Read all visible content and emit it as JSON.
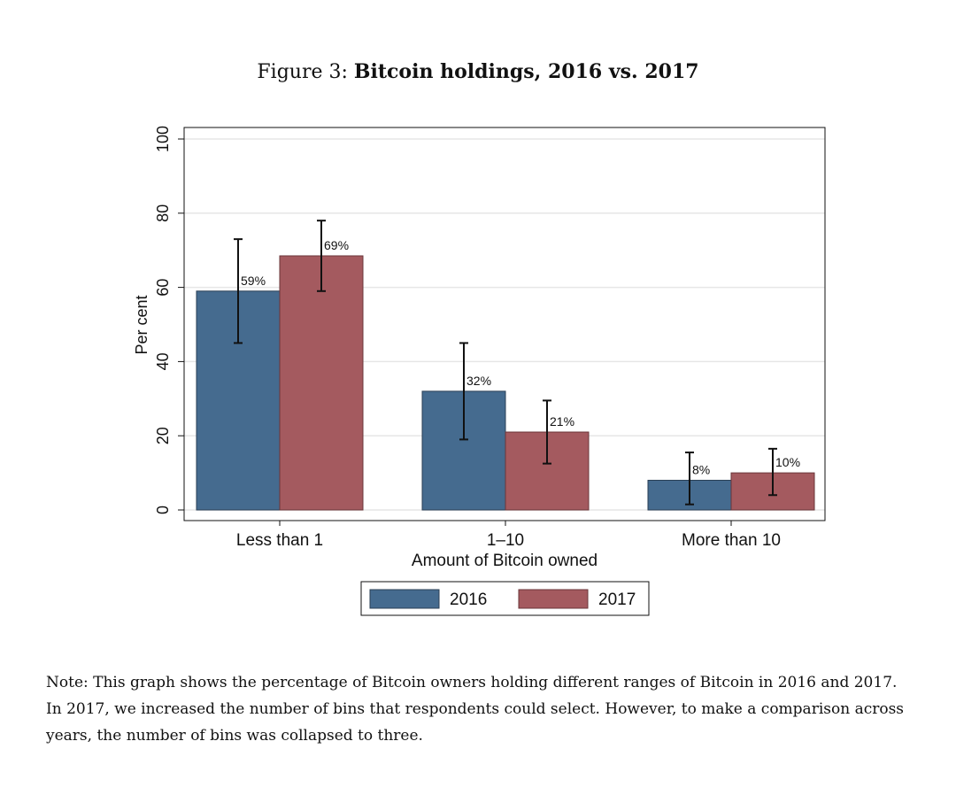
{
  "figure": {
    "label": "Figure 3:",
    "title": "Bitcoin holdings, 2016 vs. 2017"
  },
  "chart_data": {
    "type": "bar",
    "categories": [
      "Less than 1",
      "1–10",
      "More than 10"
    ],
    "series": [
      {
        "name": "2016",
        "color": "#456b8f",
        "values": [
          59,
          32,
          8
        ],
        "labels": [
          "59%",
          "32%",
          "8%"
        ],
        "ci_low": [
          45,
          19,
          1.5
        ],
        "ci_high": [
          73,
          45,
          15.5
        ]
      },
      {
        "name": "2017",
        "color": "#a45a5f",
        "values": [
          68.5,
          21,
          10
        ],
        "labels": [
          "69%",
          "21%",
          "10%"
        ],
        "ci_low": [
          59,
          12.5,
          4
        ],
        "ci_high": [
          78,
          29.5,
          16.5
        ]
      }
    ],
    "xlabel": "Amount of Bitcoin owned",
    "ylabel": "Per cent",
    "ylim": [
      0,
      100
    ],
    "yticks": [
      0,
      20,
      40,
      60,
      80,
      100
    ],
    "grid": true,
    "legend": "bottom"
  },
  "note": "Note: This graph shows the percentage of Bitcoin owners holding different ranges of Bitcoin in 2016 and 2017. In 2017, we increased the number of bins that respondents could select. However, to make a comparison across years, the number of bins was collapsed to three."
}
